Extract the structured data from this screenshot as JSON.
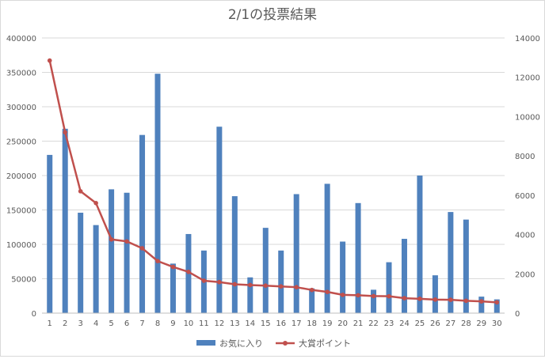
{
  "chart_data": {
    "type": "bar",
    "title": "2/1の投票結果",
    "categories": [
      "1",
      "2",
      "3",
      "4",
      "5",
      "6",
      "7",
      "8",
      "9",
      "10",
      "11",
      "12",
      "13",
      "14",
      "15",
      "16",
      "17",
      "18",
      "19",
      "20",
      "21",
      "22",
      "23",
      "24",
      "25",
      "26",
      "27",
      "28",
      "29",
      "30"
    ],
    "series": [
      {
        "name": "お気に入り",
        "type": "bar",
        "axis": "left",
        "color": "#4f81bd",
        "values": [
          230000,
          268000,
          146000,
          128000,
          180000,
          175000,
          259000,
          348000,
          72000,
          115000,
          91000,
          271000,
          170000,
          52000,
          124000,
          91000,
          173000,
          36000,
          188000,
          104000,
          160000,
          34000,
          74000,
          108000,
          200000,
          55000,
          147000,
          136000,
          24000,
          20000
        ]
      },
      {
        "name": "大賞ポイント",
        "type": "line",
        "axis": "right",
        "color": "#c0504d",
        "values": [
          12850,
          9200,
          6200,
          5600,
          3750,
          3650,
          3300,
          2650,
          2350,
          2100,
          1650,
          1580,
          1470,
          1430,
          1400,
          1360,
          1320,
          1180,
          1080,
          930,
          910,
          870,
          860,
          760,
          730,
          690,
          680,
          630,
          600,
          550
        ]
      }
    ],
    "y_left": {
      "min": 0,
      "max": 400000,
      "ticks": [
        "0",
        "50000",
        "100000",
        "150000",
        "200000",
        "250000",
        "300000",
        "350000",
        "400000"
      ]
    },
    "y_right": {
      "min": 0,
      "max": 14000,
      "ticks": [
        "0",
        "2000",
        "4000",
        "6000",
        "8000",
        "10000",
        "12000",
        "14000"
      ]
    },
    "grid": true,
    "legend_position": "bottom"
  }
}
